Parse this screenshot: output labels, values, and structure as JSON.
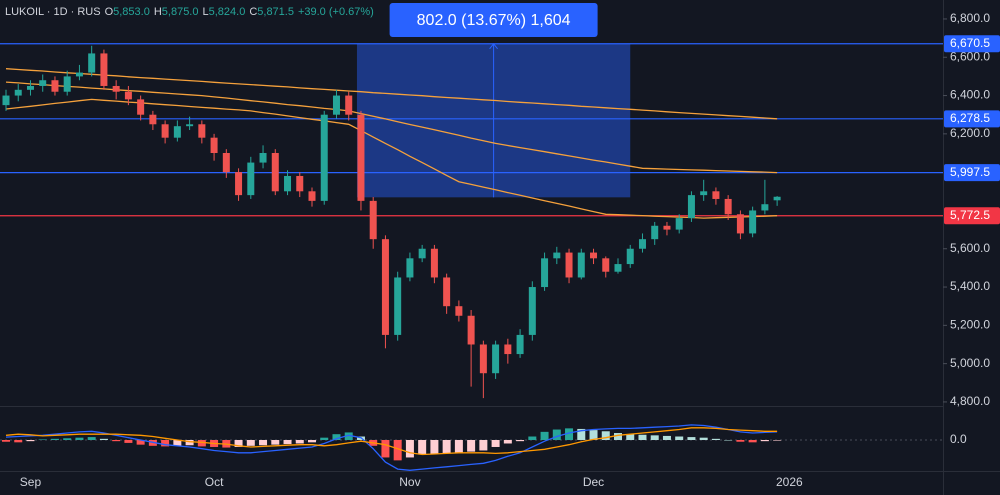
{
  "chart_data": {
    "type": "candlestick",
    "header": {
      "symbol": "LUKOIL · 1D · RUS",
      "fields": [
        {
          "key": "O",
          "value": "5,853.0"
        },
        {
          "key": "H",
          "value": "5,875.0"
        },
        {
          "key": "L",
          "value": "5,824.0"
        },
        {
          "key": "C",
          "value": "5,871.5"
        }
      ],
      "change": "+39.0 (+0.67%)"
    },
    "categories": [
      null,
      null,
      "Sep",
      null,
      null,
      null,
      null,
      null,
      null,
      null,
      null,
      null,
      null,
      null,
      null,
      null,
      null,
      "Oct",
      null,
      null,
      null,
      null,
      null,
      null,
      null,
      null,
      null,
      null,
      null,
      null,
      null,
      null,
      null,
      "Nov",
      null,
      null,
      null,
      null,
      null,
      null,
      null,
      null,
      null,
      null,
      null,
      null,
      null,
      null,
      "Dec",
      null,
      null,
      null,
      null,
      null,
      null,
      null,
      null,
      null,
      null,
      null,
      null,
      null,
      null,
      null,
      "2026"
    ],
    "open": [
      6350,
      6400,
      6430,
      6450,
      6480,
      6420,
      6500,
      6520,
      6620,
      6450,
      6420,
      6380,
      6300,
      6250,
      6180,
      6240,
      6250,
      6180,
      6100,
      6000,
      5880,
      6050,
      6100,
      5900,
      5980,
      5900,
      5850,
      6300,
      6400,
      6300,
      5850,
      5650,
      5150,
      5450,
      5550,
      5600,
      5450,
      5300,
      5250,
      5100,
      4950,
      5100,
      5050,
      5150,
      5400,
      5550,
      5580,
      5450,
      5580,
      5550,
      5480,
      5520,
      5600,
      5650,
      5720,
      5700,
      5760,
      5880,
      5900,
      5860,
      5780,
      5680,
      5800,
      5853,
      null
    ],
    "high": [
      6430,
      6460,
      6480,
      6510,
      6500,
      6530,
      6560,
      6660,
      6640,
      6480,
      6450,
      6400,
      6320,
      6270,
      6270,
      6290,
      6270,
      6200,
      6120,
      6020,
      6080,
      6140,
      6120,
      6010,
      6000,
      5920,
      6320,
      6430,
      6420,
      6320,
      5870,
      5670,
      5480,
      5580,
      5620,
      5620,
      5470,
      5330,
      5280,
      5120,
      5120,
      5130,
      5180,
      5430,
      5580,
      5610,
      5600,
      5600,
      5600,
      5560,
      5550,
      5620,
      5680,
      5740,
      5740,
      5780,
      5900,
      5960,
      5920,
      5880,
      5800,
      5820,
      5960,
      5875,
      null
    ],
    "low": [
      6320,
      6370,
      6400,
      6420,
      6400,
      6400,
      6480,
      6500,
      6430,
      6380,
      6350,
      6270,
      6220,
      6150,
      6160,
      6220,
      6150,
      6060,
      5970,
      5850,
      5860,
      6020,
      5880,
      5880,
      5870,
      5820,
      5830,
      6280,
      6270,
      5800,
      5600,
      5080,
      5120,
      5430,
      5530,
      5420,
      5260,
      5220,
      4880,
      4820,
      4920,
      5000,
      5030,
      5120,
      5380,
      5520,
      5420,
      5440,
      5520,
      5450,
      5470,
      5500,
      5580,
      5620,
      5670,
      5680,
      5740,
      5850,
      5830,
      5750,
      5650,
      5660,
      5780,
      5824,
      null
    ],
    "close": [
      6400,
      6430,
      6450,
      6480,
      6420,
      6500,
      6520,
      6620,
      6450,
      6420,
      6380,
      6300,
      6250,
      6180,
      6240,
      6250,
      6180,
      6100,
      6000,
      5880,
      6050,
      6100,
      5900,
      5980,
      5900,
      5850,
      6300,
      6400,
      6300,
      5850,
      5650,
      5150,
      5450,
      5550,
      5600,
      5450,
      5300,
      5250,
      5100,
      4950,
      5100,
      5050,
      5150,
      5400,
      5550,
      5580,
      5450,
      5580,
      5550,
      5480,
      5520,
      5600,
      5650,
      5720,
      5700,
      5760,
      5880,
      5900,
      5860,
      5780,
      5680,
      5800,
      5832.5,
      5871.5,
      null
    ],
    "up_color": "#26a69a",
    "down_color": "#ef5350",
    "moving_averages": [
      {
        "color": "#f5a13c",
        "values": [
          6540,
          6536,
          6532,
          6528,
          6523,
          6519,
          6515,
          6511,
          6507,
          6503,
          6498,
          6494,
          6490,
          6486,
          6482,
          6478,
          6474,
          6469,
          6465,
          6461,
          6457,
          6453,
          6449,
          6445,
          6440,
          6436,
          6432,
          6428,
          6424,
          6420,
          6415,
          6411,
          6407,
          6403,
          6399,
          6394,
          6390,
          6386,
          6382,
          6378,
          6374,
          6369,
          6365,
          6361,
          6357,
          6353,
          6349,
          6344,
          6340,
          6336,
          6332,
          6328,
          6324,
          6320,
          6315,
          6311,
          6307,
          6303,
          6299,
          6295,
          6291,
          6287,
          6283,
          6278.5,
          null
        ]
      },
      {
        "color": "#f5a13c",
        "values": [
          6470,
          6466,
          6461,
          6457,
          6452,
          6448,
          6444,
          6439,
          6435,
          6430,
          6426,
          6422,
          6417,
          6413,
          6408,
          6404,
          6400,
          6393,
          6387,
          6380,
          6373,
          6367,
          6360,
          6353,
          6347,
          6340,
          6333,
          6327,
          6320,
          6306,
          6292,
          6278,
          6263,
          6249,
          6235,
          6221,
          6207,
          6193,
          6178,
          6164,
          6150,
          6139,
          6128,
          6118,
          6107,
          6096,
          6085,
          6074,
          6063,
          6053,
          6042,
          6031,
          6020,
          6018,
          6016,
          6014,
          6012,
          6010,
          6008,
          6006,
          6004,
          6002,
          6000,
          5997.5,
          null
        ]
      },
      {
        "color": "#f5a13c",
        "values": [
          6330,
          6337,
          6344,
          6351,
          6359,
          6366,
          6373,
          6380,
          6375,
          6371,
          6366,
          6362,
          6357,
          6352,
          6348,
          6343,
          6338,
          6334,
          6329,
          6325,
          6320,
          6311,
          6303,
          6294,
          6285,
          6276,
          6268,
          6259,
          6250,
          6217,
          6183,
          6150,
          6117,
          6083,
          6050,
          6017,
          5983,
          5950,
          5936,
          5922,
          5908,
          5893,
          5879,
          5865,
          5851,
          5837,
          5823,
          5808,
          5794,
          5780,
          5778,
          5775,
          5773,
          5770,
          5768,
          5765,
          5763,
          5760,
          5762,
          5764,
          5766,
          5768,
          5770,
          5772.5,
          null
        ]
      }
    ],
    "ylim": [
      4784,
      6899
    ],
    "yticks": [
      {
        "value": 6800,
        "label": "6,800.0"
      },
      {
        "value": 6600,
        "label": "6,600.0"
      },
      {
        "value": 6400,
        "label": "6,400.0"
      },
      {
        "value": 6200,
        "label": "6,200.0"
      },
      {
        "value": 5600,
        "label": "5,600.0"
      },
      {
        "value": 5400,
        "label": "5,400.0"
      },
      {
        "value": 5200,
        "label": "5,200.0"
      },
      {
        "value": 5000,
        "label": "5,000.0"
      },
      {
        "value": 4800,
        "label": "4,800.0"
      }
    ],
    "levels": [
      {
        "value": 6670.5,
        "label": "6,670.5",
        "color": "#2962ff"
      },
      {
        "value": 6278.5,
        "label": "6,278.5",
        "color": "#2962ff"
      },
      {
        "value": 5997.5,
        "label": "5,997.5",
        "color": "#2962ff"
      },
      {
        "value": 5772.5,
        "label": "5,772.5",
        "color": "#f23645"
      }
    ],
    "measure": {
      "label": "802.0 (13.67%) 1,604",
      "from_index": 29,
      "to_index": 51,
      "low": 5868.5,
      "high": 6670.5,
      "color": "#2962ff"
    },
    "macd": {
      "ylim": [
        -55,
        55
      ],
      "yticks": [
        {
          "value": 0,
          "label": "0.0"
        }
      ],
      "histogram": [
        -3,
        -4,
        -2,
        1,
        2,
        3,
        4,
        5,
        2,
        -2,
        -5,
        -8,
        -10,
        -11,
        -10,
        -9,
        -11,
        -12,
        -13,
        -12,
        -10,
        -9,
        -8,
        -7,
        -6,
        -4,
        4,
        10,
        13,
        6,
        -10,
        -30,
        -35,
        -30,
        -25,
        -24,
        -23,
        -22,
        -20,
        -18,
        -12,
        -6,
        -2,
        6,
        14,
        18,
        20,
        19,
        17,
        15,
        12,
        10,
        9,
        8,
        7,
        6,
        5,
        4,
        2,
        0,
        -3,
        -4,
        -2,
        -1,
        null
      ],
      "macd_line": {
        "color": "#2962ff",
        "values": [
          5,
          6,
          7,
          8,
          10,
          12,
          14,
          15,
          12,
          8,
          4,
          0,
          -4,
          -8,
          -10,
          -12,
          -15,
          -18,
          -20,
          -22,
          -22,
          -20,
          -18,
          -16,
          -14,
          -12,
          -6,
          2,
          8,
          4,
          -15,
          -38,
          -50,
          -52,
          -50,
          -48,
          -46,
          -44,
          -42,
          -40,
          -35,
          -28,
          -22,
          -12,
          -2,
          6,
          12,
          16,
          18,
          19,
          20,
          20,
          21,
          22,
          23,
          24,
          26,
          25,
          22,
          18,
          14,
          12,
          13,
          14,
          null
        ]
      },
      "signal_line": {
        "color": "#ff9800",
        "values": [
          8,
          10,
          9,
          7,
          8,
          9,
          10,
          10,
          10,
          10,
          9,
          8,
          6,
          3,
          0,
          -3,
          -4,
          -6,
          -7,
          -10,
          -12,
          -11,
          -10,
          -9,
          -8,
          -8,
          -10,
          -8,
          -5,
          -2,
          -5,
          -8,
          -15,
          -22,
          -25,
          -24,
          -23,
          -22,
          -22,
          -22,
          -23,
          -22,
          -20,
          -18,
          -16,
          -12,
          -8,
          -3,
          1,
          4,
          8,
          10,
          12,
          14,
          16,
          18,
          21,
          21,
          20,
          18,
          17,
          16,
          15,
          15,
          null
        ]
      }
    }
  }
}
